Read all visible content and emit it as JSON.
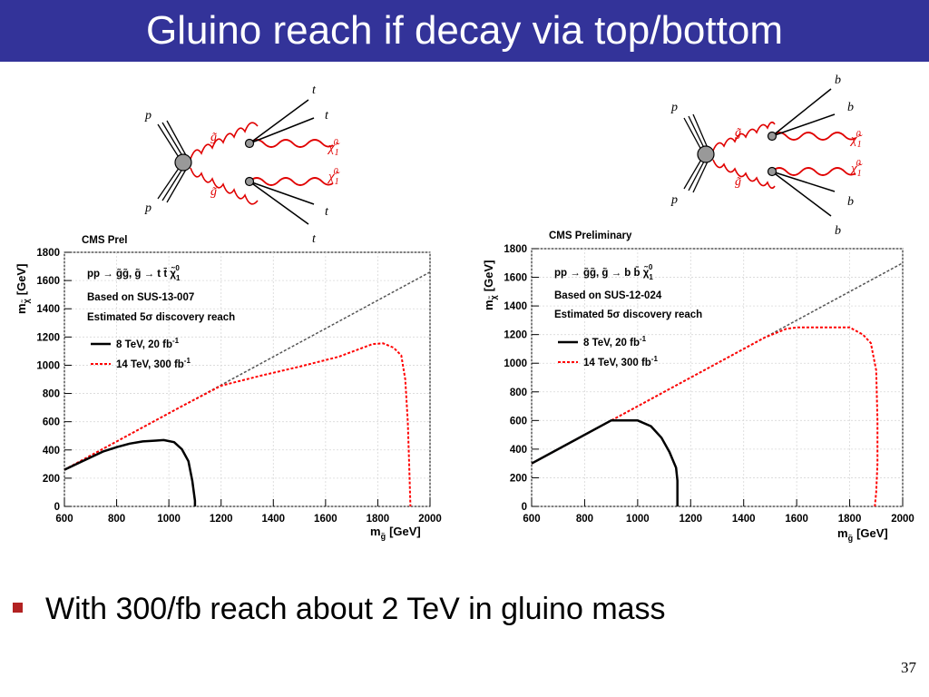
{
  "slide": {
    "title": "Gluino reach if decay via top/bottom",
    "bullet": "With 300/fb reach about 2 TeV in gluino mass",
    "page_number": "37",
    "accent_color": "#333399",
    "bullet_color": "#b22222"
  },
  "diagrams": [
    {
      "proton_label": "p",
      "gluino_label": "g̃",
      "neutralino_label": "χ̃",
      "neutralino_sub": "1",
      "neutralino_sup": "0",
      "quark_label": "t"
    },
    {
      "proton_label": "p",
      "gluino_label": "g̃",
      "neutralino_label": "χ̃",
      "neutralino_sub": "1",
      "neutralino_sup": "0",
      "quark_label": "b"
    }
  ],
  "chart_data": [
    {
      "type": "line",
      "header": "CMS Prel",
      "process_main": "pp → g̃g̃, g̃ → t t̄ χ̃",
      "process_sub": "1",
      "process_sup": "0",
      "based_on": "Based on SUS-13-007",
      "estimate": "Estimated 5σ discovery reach",
      "xlabel": "m",
      "xlabel_sub": "g̃",
      "xlabel_unit": "[GeV]",
      "ylabel": "m",
      "ylabel_sub": "χ̃",
      "ylabel_unit": "[GeV]",
      "xlim": [
        600,
        2000
      ],
      "ylim": [
        0,
        1800
      ],
      "xticks": [
        "600",
        "800",
        "1000",
        "1200",
        "1400",
        "1600",
        "1800",
        "2000"
      ],
      "yticks": [
        "0",
        "200",
        "400",
        "600",
        "800",
        "1000",
        "1200",
        "1400",
        "1600",
        "1800"
      ],
      "diagonal": {
        "x": [
          600,
          2000
        ],
        "y": [
          260,
          1660
        ]
      },
      "series": [
        {
          "name": "8 TeV, 20 fb",
          "name_sup": "-1",
          "color": "#000000",
          "dashed": false,
          "x": [
            600,
            680,
            750,
            800,
            850,
            900,
            950,
            980,
            1020,
            1050,
            1075,
            1090,
            1100,
            1100
          ],
          "y": [
            260,
            330,
            390,
            420,
            445,
            460,
            466,
            470,
            455,
            405,
            320,
            180,
            40,
            0
          ]
        },
        {
          "name": "14 TeV, 300 fb",
          "name_sup": "-1",
          "color": "#ff0000",
          "dashed": true,
          "x": [
            600,
            750,
            900,
            1050,
            1200,
            1350,
            1500,
            1650,
            1780,
            1820,
            1860,
            1890,
            1905,
            1915,
            1920,
            1925
          ],
          "y": [
            260,
            410,
            560,
            710,
            855,
            925,
            990,
            1060,
            1150,
            1155,
            1125,
            1070,
            900,
            600,
            300,
            0
          ]
        }
      ]
    },
    {
      "type": "line",
      "header": "CMS Preliminary",
      "process_main": "pp → g̃g̃, g̃ → b b̄ χ̃",
      "process_sub": "1",
      "process_sup": "0",
      "based_on": "Based on SUS-12-024",
      "estimate": "Estimated 5σ discovery reach",
      "xlabel": "m",
      "xlabel_sub": "g̃",
      "xlabel_unit": "[GeV]",
      "ylabel": "m",
      "ylabel_sub": "χ̃",
      "ylabel_unit": "[GeV]",
      "xlim": [
        600,
        2000
      ],
      "ylim": [
        0,
        1800
      ],
      "xticks": [
        "600",
        "800",
        "1000",
        "1200",
        "1400",
        "1600",
        "1800",
        "2000"
      ],
      "yticks": [
        "0",
        "200",
        "400",
        "600",
        "800",
        "1000",
        "1200",
        "1400",
        "1600",
        "1800"
      ],
      "diagonal": {
        "x": [
          600,
          2000
        ],
        "y": [
          300,
          1700
        ]
      },
      "series": [
        {
          "name": "8 TeV, 20 fb",
          "name_sup": "-1",
          "color": "#000000",
          "dashed": false,
          "x": [
            600,
            750,
            900,
            1000,
            1050,
            1090,
            1120,
            1145,
            1150,
            1150
          ],
          "y": [
            300,
            450,
            600,
            600,
            560,
            480,
            380,
            270,
            180,
            0
          ]
        },
        {
          "name": "14 TeV, 300 fb",
          "name_sup": "-1",
          "color": "#ff0000",
          "dashed": true,
          "x": [
            600,
            1000,
            1480,
            1560,
            1600,
            1800,
            1850,
            1880,
            1900,
            1905,
            1905,
            1900,
            1895
          ],
          "y": [
            300,
            700,
            1180,
            1240,
            1250,
            1250,
            1200,
            1140,
            950,
            600,
            300,
            100,
            0
          ]
        }
      ]
    }
  ]
}
